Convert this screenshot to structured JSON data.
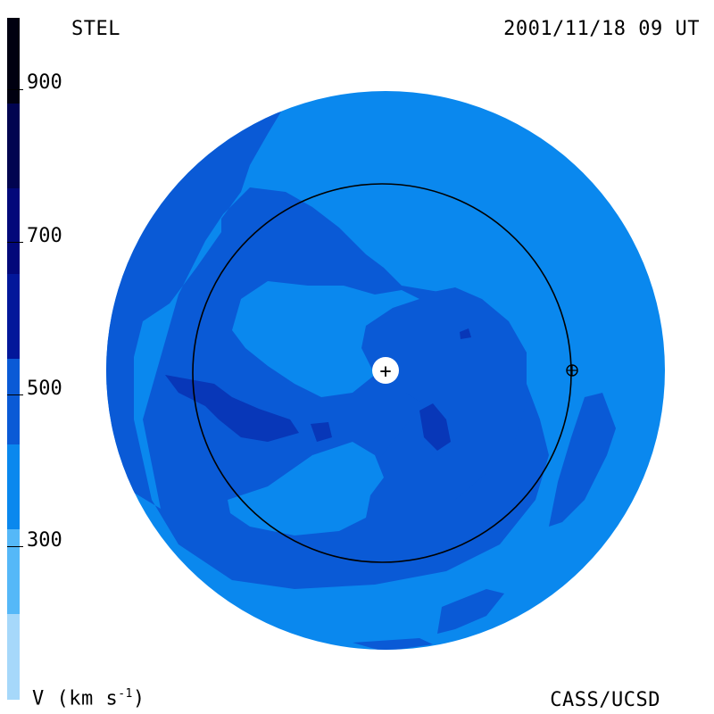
{
  "header": {
    "left_label": "STEL",
    "right_label": "2001/11/18 09 UT"
  },
  "footer": {
    "left_label": "V (km s",
    "left_sup": "-1",
    "left_close": ")",
    "right_label": "CASS/UCSD"
  },
  "colorbar": {
    "ticks": [
      "900",
      "700",
      "500",
      "300"
    ],
    "colors": [
      "#a6d8fa",
      "#55b8f8",
      "#0a88ee",
      "#0a5ad6",
      "#02179a",
      "#02087a",
      "#010450",
      "#000010"
    ]
  },
  "map_colors": {
    "v300_400": "#0a88ee",
    "v400_500": "#0a5ad6",
    "v500_600": "#0837b8"
  },
  "markers": {
    "sun_symbol": "+",
    "earth_symbol": "⊕"
  }
}
